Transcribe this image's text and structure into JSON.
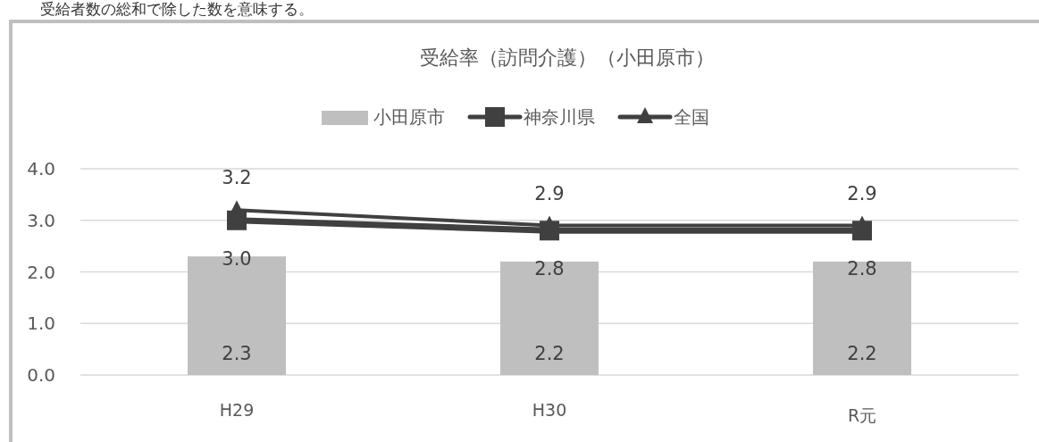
{
  "chart_data": {
    "type": "bar",
    "title": "受給率（訪問介護）（小田原市）",
    "categories": [
      "H29",
      "H30",
      "R元"
    ],
    "series": [
      {
        "name": "小田原市",
        "color": "#bfbfbf",
        "values": [
          2.3,
          2.2,
          2.2
        ],
        "value_labels": [
          "2.3",
          "2.2",
          "2.2"
        ]
      },
      {
        "name": "神奈川県",
        "type": "line",
        "color": "#404040",
        "marker": "square",
        "values": [
          3.0,
          2.8,
          2.8
        ],
        "value_labels": [
          "3.0",
          "2.8",
          "2.8"
        ]
      },
      {
        "name": "全国",
        "type": "line",
        "color": "#404040",
        "marker": "triangle",
        "values": [
          3.2,
          2.9,
          2.9
        ],
        "value_labels": [
          "3.2",
          "2.9",
          "2.9"
        ]
      }
    ],
    "ylim": [
      0,
      4
    ],
    "yticks": [
      {
        "value": 0,
        "label": "0.0"
      },
      {
        "value": 1,
        "label": "1.0"
      },
      {
        "value": 2,
        "label": "2.0"
      },
      {
        "value": 3,
        "label": "3.0"
      },
      {
        "value": 4,
        "label": "4.0"
      }
    ],
    "grid": "y",
    "legend": "top",
    "annotations": [
      "受給者数の総和で除した数を意味する。"
    ]
  }
}
